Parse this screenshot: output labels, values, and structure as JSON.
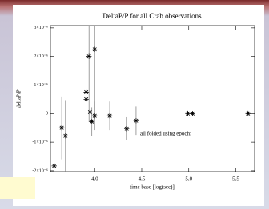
{
  "chart_data": {
    "type": "errorscatter",
    "title": "DeltaP/P for all Crab observations",
    "x_label": "time base [log(sec)]",
    "y_label": "deltaP/P",
    "annotation": "all folded using epoch:",
    "xlim": [
      3.53,
      5.7
    ],
    "ylim": [
      -2.03e-06,
      3.08e-06
    ],
    "xticks": [
      {
        "value": 4,
        "label": "4.0"
      },
      4.5,
      {
        "value": 5,
        "label": "5.0"
      },
      5.5
    ],
    "yticks": [
      {
        "value": 3e-06,
        "label": "3×10⁻⁶"
      },
      {
        "value": 2e-06,
        "label": "2×10⁻⁶"
      },
      {
        "value": 1e-06,
        "label": "1×10⁻⁶"
      },
      0,
      {
        "value": -1e-06,
        "label": "-1×10⁻⁶"
      },
      {
        "value": -2e-06,
        "label": "-2×10⁻⁶"
      }
    ],
    "color": "#000000",
    "x": [
      3.57,
      3.65,
      3.69,
      3.91,
      3.91,
      3.94,
      3.95,
      3.97,
      4.0,
      4.0,
      4.16,
      4.34,
      4.44,
      4.99,
      5.04,
      5.63
    ],
    "values": [
      -1.83e-06,
      -5e-07,
      -7.8e-07,
      7.5e-07,
      5e-07,
      2e-06,
      5e-08,
      -2.8e-07,
      2.25e-06,
      -8e-08,
      -8e-08,
      -5.3e-07,
      -2.5e-07,
      0.0,
      0.0,
      0.0
    ],
    "errors": [
      1e-07,
      1.1e-06,
      1.25e-06,
      6e-07,
      4e-07,
      2.3e-06,
      1.5e-06,
      5e-07,
      2.5e-06,
      5e-07,
      5e-07,
      4e-07,
      5e-07,
      1e-07,
      8e-08,
      1e-07
    ]
  }
}
